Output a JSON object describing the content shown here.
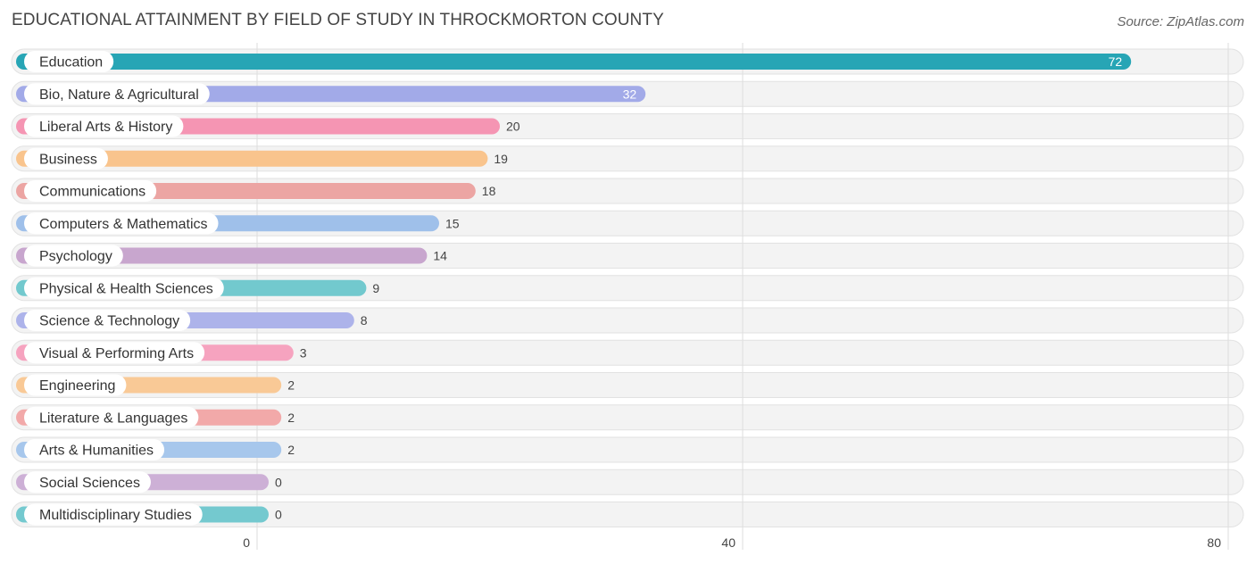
{
  "header": {
    "title": "EDUCATIONAL ATTAINMENT BY FIELD OF STUDY IN THROCKMORTON COUNTY",
    "source": "Source: ZipAtlas.com"
  },
  "chart_data": {
    "type": "bar",
    "orientation": "horizontal",
    "title": "EDUCATIONAL ATTAINMENT BY FIELD OF STUDY IN THROCKMORTON COUNTY",
    "categories": [
      "Education",
      "Bio, Nature & Agricultural",
      "Liberal Arts & History",
      "Business",
      "Communications",
      "Computers & Mathematics",
      "Psychology",
      "Physical & Health Sciences",
      "Science & Technology",
      "Visual & Performing Arts",
      "Engineering",
      "Literature & Languages",
      "Arts & Humanities",
      "Social Sciences",
      "Multidisciplinary Studies"
    ],
    "values": [
      72,
      32,
      20,
      19,
      18,
      15,
      14,
      9,
      8,
      3,
      2,
      2,
      2,
      0,
      0
    ],
    "value_labels": [
      "72",
      "32",
      "20",
      "19",
      "18",
      "15",
      "14",
      "9",
      "8",
      "3",
      "2",
      "2",
      "2",
      "0",
      "0"
    ],
    "colors": [
      "#27a5b5",
      "#a2aae8",
      "#f595b3",
      "#f9c48d",
      "#eca5a3",
      "#9fc0ea",
      "#c8a6ce",
      "#72c9ce",
      "#adb3ea",
      "#f6a3bf",
      "#f9c996",
      "#f2a9a9",
      "#a7c7ec",
      "#cdb0d6",
      "#74c9cf"
    ],
    "xlim": [
      0,
      80
    ],
    "x_ticks": [
      0,
      40,
      80
    ],
    "x_tick_labels": [
      "0",
      "40",
      "80"
    ],
    "grid": true,
    "xlabel": "",
    "ylabel": ""
  }
}
